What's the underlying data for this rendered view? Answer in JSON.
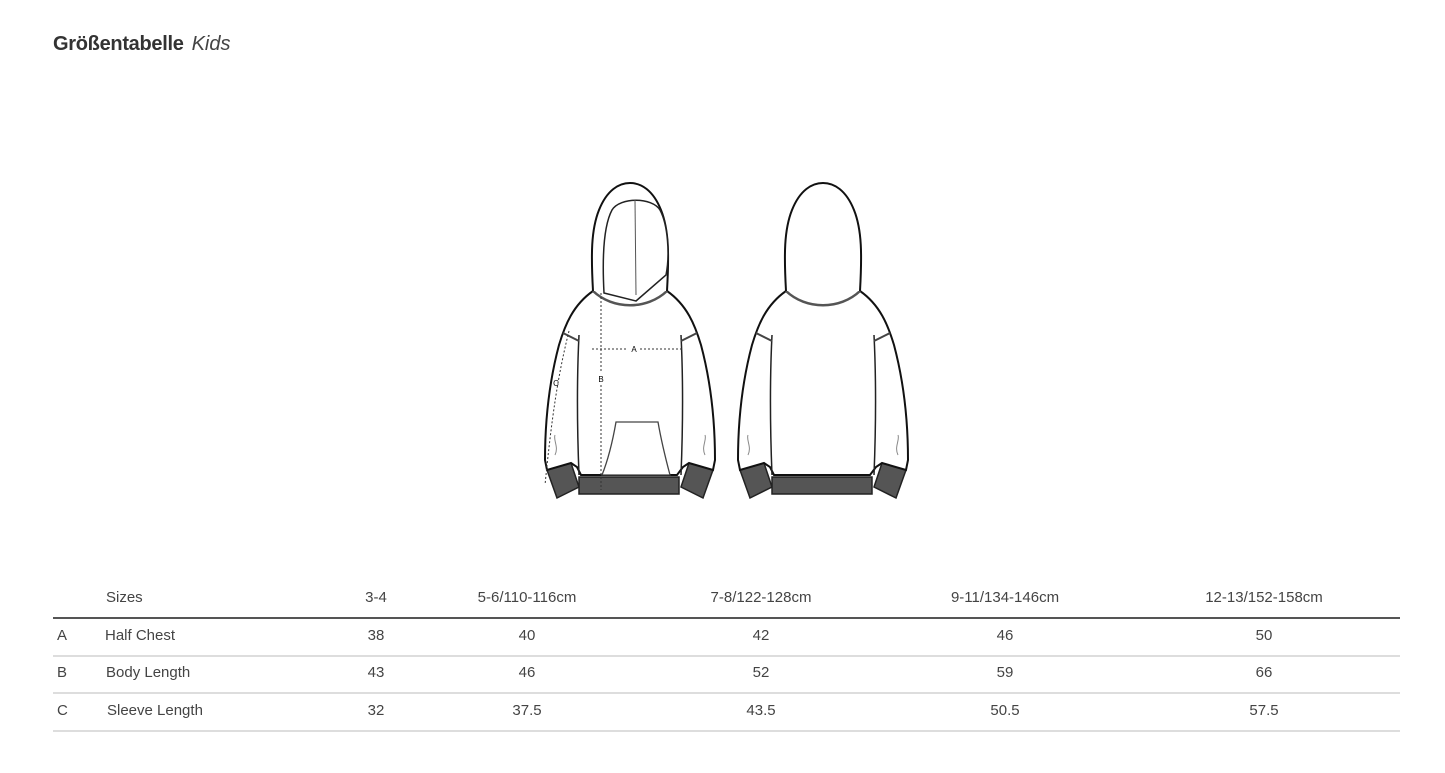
{
  "title": {
    "main": "Größentabelle",
    "sub": "Kids"
  },
  "figure": {
    "labels": {
      "a": "A",
      "b": "B",
      "c": "C"
    }
  },
  "table": {
    "header": [
      "Sizes",
      "3-4",
      "5-6/110-116cm",
      "7-8/122-128cm",
      "9-11/134-146cm",
      "12-13/152-158cm"
    ],
    "rows": [
      {
        "key": "A",
        "label": "Half Chest",
        "values": [
          "38",
          "40",
          "42",
          "46",
          "50"
        ]
      },
      {
        "key": "B",
        "label": "Body Length",
        "values": [
          "43",
          "46",
          "52",
          "59",
          "66"
        ]
      },
      {
        "key": "C",
        "label": "Sleeve Length",
        "values": [
          "32",
          "37.5",
          "43.5",
          "50.5",
          "57.5"
        ]
      }
    ]
  }
}
